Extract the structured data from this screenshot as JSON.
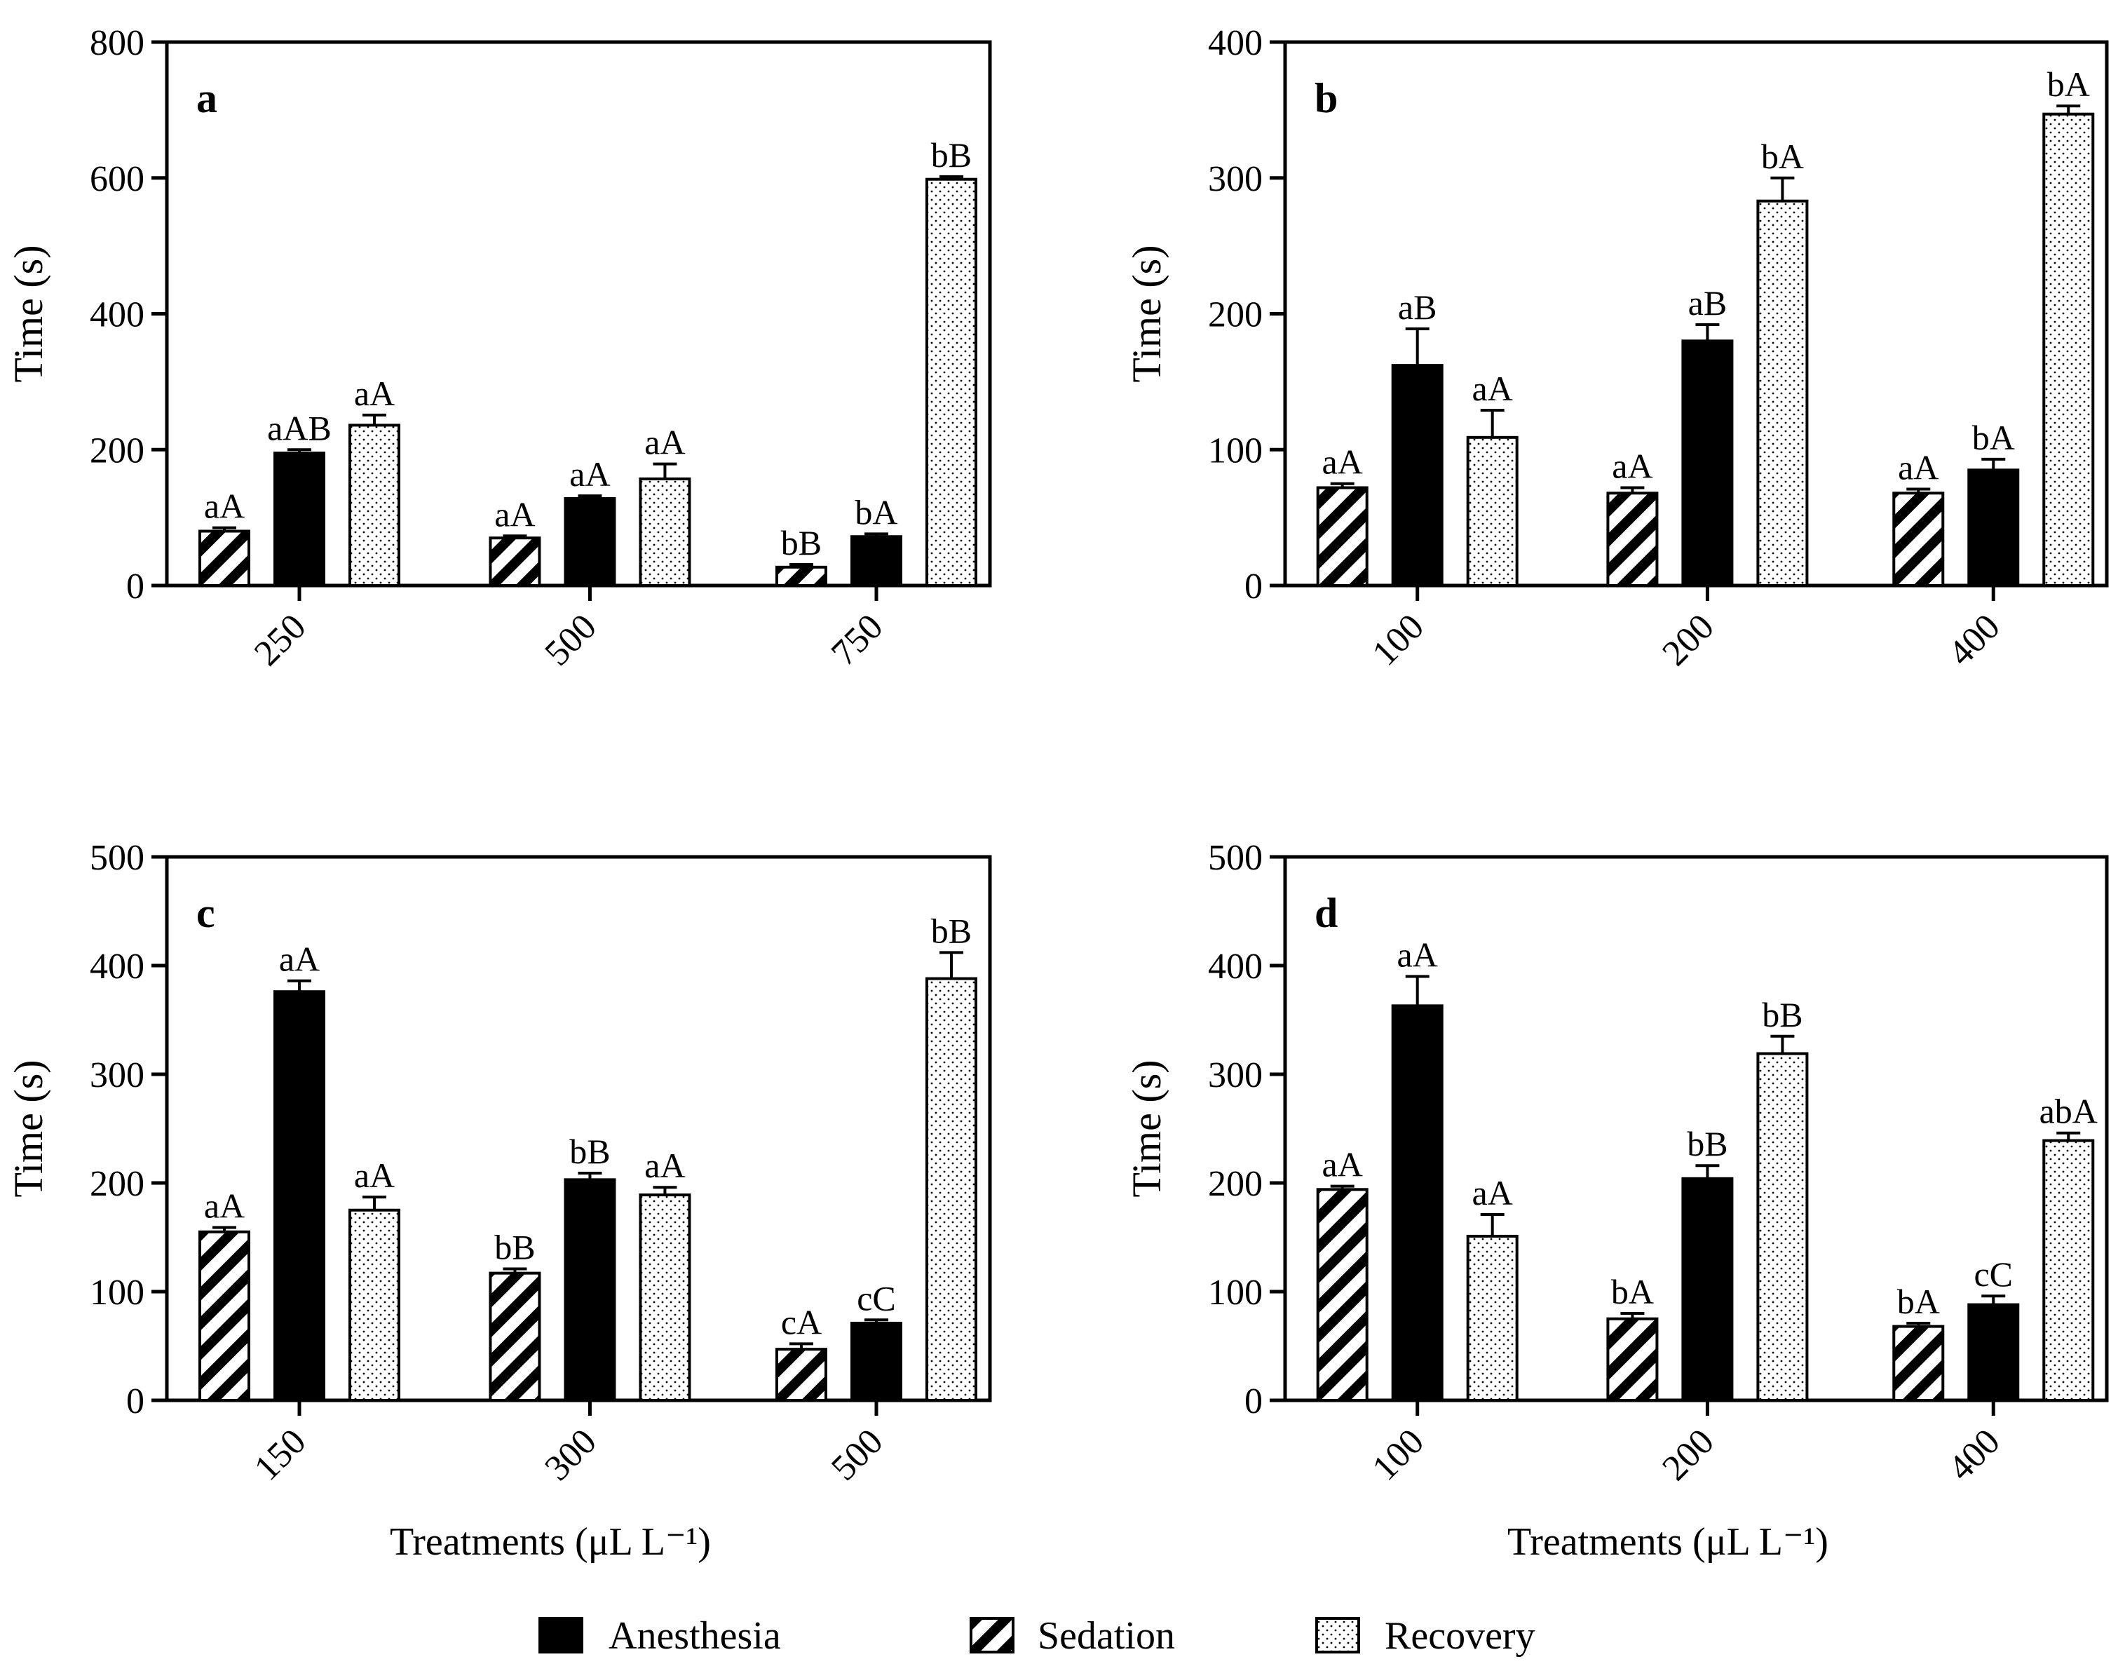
{
  "colors": {
    "anesthesia": "#000000",
    "background": "#ffffff",
    "axis": "#000000"
  },
  "legend": {
    "anesthesia": "Anesthesia",
    "sedation": "Sedation",
    "recovery": "Recovery"
  },
  "chart_data": [
    {
      "type": "bar",
      "panel": "a",
      "ylabel": "Time (s)",
      "xlabel": "",
      "ylim": [
        0,
        800
      ],
      "yticks": [
        0,
        200,
        400,
        600,
        800
      ],
      "categories": [
        "250",
        "500",
        "750"
      ],
      "series": [
        {
          "name": "Sedation",
          "values": [
            80,
            70,
            27
          ],
          "errors": [
            5,
            3,
            4
          ],
          "labels": [
            "aA",
            "aA",
            "bB"
          ]
        },
        {
          "name": "Anesthesia",
          "values": [
            195,
            128,
            72
          ],
          "errors": [
            5,
            4,
            4
          ],
          "labels": [
            "aAB",
            "aA",
            "bA"
          ]
        },
        {
          "name": "Recovery",
          "values": [
            236,
            157,
            598
          ],
          "errors": [
            15,
            22,
            4
          ],
          "labels": [
            "aA",
            "aA",
            "bB"
          ]
        }
      ]
    },
    {
      "type": "bar",
      "panel": "b",
      "ylabel": "Time (s)",
      "xlabel": "",
      "ylim": [
        0,
        400
      ],
      "yticks": [
        0,
        100,
        200,
        300,
        400
      ],
      "categories": [
        "100",
        "200",
        "400"
      ],
      "series": [
        {
          "name": "Sedation",
          "values": [
            72,
            68,
            68
          ],
          "errors": [
            3,
            4,
            3
          ],
          "labels": [
            "aA",
            "aA",
            "aA"
          ]
        },
        {
          "name": "Anesthesia",
          "values": [
            162,
            180,
            85
          ],
          "errors": [
            27,
            12,
            8
          ],
          "labels": [
            "aB",
            "aB",
            "bA"
          ]
        },
        {
          "name": "Recovery",
          "values": [
            109,
            283,
            347
          ],
          "errors": [
            20,
            17,
            6
          ],
          "labels": [
            "aA",
            "bA",
            "bA"
          ]
        }
      ]
    },
    {
      "type": "bar",
      "panel": "c",
      "ylabel": "Time (s)",
      "xlabel": "Treatments (μL L⁻¹)",
      "ylim": [
        0,
        500
      ],
      "yticks": [
        0,
        100,
        200,
        300,
        400,
        500
      ],
      "categories": [
        "150",
        "300",
        "500"
      ],
      "series": [
        {
          "name": "Sedation",
          "values": [
            155,
            117,
            47
          ],
          "errors": [
            4,
            4,
            5
          ],
          "labels": [
            "aA",
            "bB",
            "cA"
          ]
        },
        {
          "name": "Anesthesia",
          "values": [
            376,
            203,
            71
          ],
          "errors": [
            10,
            6,
            3
          ],
          "labels": [
            "aA",
            "bB",
            "cC"
          ]
        },
        {
          "name": "Recovery",
          "values": [
            175,
            189,
            388
          ],
          "errors": [
            12,
            7,
            24
          ],
          "labels": [
            "aA",
            "aA",
            "bB"
          ]
        }
      ]
    },
    {
      "type": "bar",
      "panel": "d",
      "ylabel": "Time (s)",
      "xlabel": "Treatments (μL L⁻¹)",
      "ylim": [
        0,
        500
      ],
      "yticks": [
        0,
        100,
        200,
        300,
        400,
        500
      ],
      "categories": [
        "100",
        "200",
        "400"
      ],
      "series": [
        {
          "name": "Sedation",
          "values": [
            194,
            75,
            68
          ],
          "errors": [
            3,
            5,
            3
          ],
          "labels": [
            "aA",
            "bA",
            "bA"
          ]
        },
        {
          "name": "Anesthesia",
          "values": [
            363,
            204,
            88
          ],
          "errors": [
            27,
            12,
            8
          ],
          "labels": [
            "aA",
            "bB",
            "cC"
          ]
        },
        {
          "name": "Recovery",
          "values": [
            151,
            319,
            239
          ],
          "errors": [
            20,
            16,
            7
          ],
          "labels": [
            "aA",
            "bB",
            "abA"
          ]
        }
      ]
    }
  ]
}
